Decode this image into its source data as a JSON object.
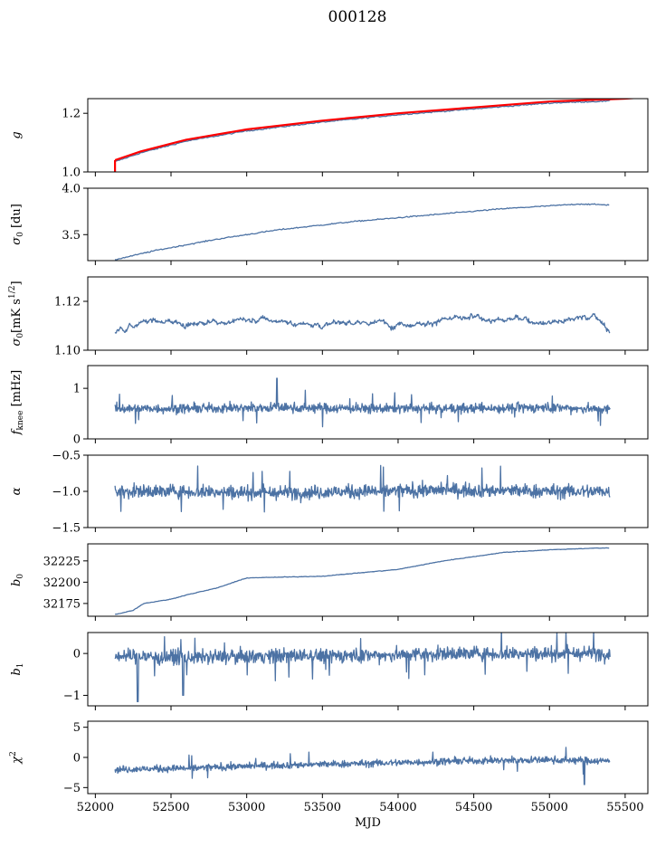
{
  "figure": {
    "title": "000128"
  },
  "colors": {
    "series": "#4c72a4",
    "fit": "#ff0000"
  },
  "chart_data": [
    {
      "type": "line",
      "id": "g",
      "ylabel": "g",
      "ylim": [
        1.0,
        1.25
      ],
      "yticks": [
        1.0,
        1.2
      ],
      "tick_labels": [
        "1.0",
        "1.2"
      ],
      "xlim": [
        51950,
        55650
      ],
      "series": [
        {
          "style": "blue",
          "x": [
            52130,
            52300,
            52600,
            53000,
            53500,
            54000,
            54500,
            55000,
            55400
          ],
          "values": [
            1.035,
            1.065,
            1.105,
            1.14,
            1.17,
            1.195,
            1.215,
            1.235,
            1.242
          ]
        },
        {
          "style": "red",
          "x": [
            52130,
            52300,
            52600,
            53000,
            53500,
            54000,
            54500,
            55000,
            55500,
            55650
          ],
          "values": [
            1.04,
            1.07,
            1.11,
            1.145,
            1.175,
            1.2,
            1.22,
            1.24,
            1.25,
            1.255
          ]
        }
      ]
    },
    {
      "type": "line",
      "id": "sigma0_du",
      "ylabel": "σ0 [du]",
      "ylim": [
        3.22,
        4.0
      ],
      "yticks": [
        3.5,
        4.0
      ],
      "tick_labels": [
        "3.5",
        "4.0"
      ],
      "xlim": [
        51950,
        55650
      ],
      "series": [
        {
          "style": "blue",
          "x": [
            52130,
            52400,
            52800,
            53200,
            53700,
            54200,
            54700,
            55200,
            55400
          ],
          "values": [
            3.23,
            3.33,
            3.45,
            3.55,
            3.64,
            3.71,
            3.78,
            3.83,
            3.82
          ]
        }
      ]
    },
    {
      "type": "line",
      "id": "sigma0_mk",
      "ylabel": "σ0[mK s^1/2]",
      "ylim": [
        1.1,
        1.13
      ],
      "yticks": [
        1.1,
        1.12
      ],
      "tick_labels": [
        "1.10",
        "1.12"
      ],
      "xlim": [
        51950,
        55650
      ],
      "series": [
        {
          "style": "blue",
          "x": [
            52130,
            52300,
            52600,
            53000,
            53500,
            54000,
            54500,
            55000,
            55300,
            55400
          ],
          "values": [
            1.107,
            1.112,
            1.111,
            1.112,
            1.111,
            1.111,
            1.113,
            1.112,
            1.114,
            1.108
          ]
        }
      ]
    },
    {
      "type": "line",
      "id": "fknee",
      "ylabel": "fknee [mHz]",
      "ylim": [
        0,
        1.45
      ],
      "yticks": [
        0,
        1
      ],
      "tick_labels": [
        "0",
        "1"
      ],
      "xlim": [
        51950,
        55650
      ],
      "series": [
        {
          "style": "blue",
          "x": [
            52130,
            52600,
            53200,
            53800,
            54400,
            55000,
            55400
          ],
          "values": [
            0.6,
            0.6,
            0.62,
            0.6,
            0.6,
            0.62,
            0.58
          ]
        }
      ]
    },
    {
      "type": "line",
      "id": "alpha",
      "ylabel": "α",
      "ylim": [
        -1.5,
        -0.5
      ],
      "yticks": [
        -1.5,
        -1.0,
        -0.5
      ],
      "tick_labels": [
        "−1.5",
        "−1.0",
        "−0.5"
      ],
      "xlim": [
        51950,
        55650
      ],
      "series": [
        {
          "style": "blue",
          "x": [
            52130,
            52600,
            53200,
            53800,
            54400,
            55000,
            55400
          ],
          "values": [
            -1.0,
            -1.0,
            -1.02,
            -1.0,
            -0.98,
            -1.0,
            -1.0
          ]
        }
      ]
    },
    {
      "type": "line",
      "id": "b0",
      "ylabel": "b0",
      "ylim": [
        32160,
        32245
      ],
      "yticks": [
        32175,
        32200,
        32225
      ],
      "tick_labels": [
        "32175",
        "32200",
        "32225"
      ],
      "xlim": [
        51950,
        55650
      ],
      "series": [
        {
          "style": "blue",
          "x": [
            52130,
            52250,
            52320,
            52500,
            52600,
            52800,
            53000,
            53500,
            54000,
            54300,
            54700,
            55000,
            55300,
            55400
          ],
          "values": [
            32162,
            32167,
            32175,
            32180,
            32185,
            32193,
            32205,
            32207,
            32215,
            32225,
            32235,
            32238,
            32240,
            32240
          ]
        }
      ]
    },
    {
      "type": "line",
      "id": "b1",
      "ylabel": "b1",
      "ylim": [
        -1.25,
        0.5
      ],
      "yticks": [
        -1,
        0
      ],
      "tick_labels": [
        "−1",
        "0"
      ],
      "xlim": [
        51950,
        55650
      ],
      "series": [
        {
          "style": "blue",
          "x": [
            52130,
            52600,
            53200,
            53800,
            54400,
            55000,
            55400
          ],
          "values": [
            -0.05,
            -0.1,
            -0.05,
            -0.05,
            0.0,
            0.0,
            0.0
          ]
        }
      ]
    },
    {
      "type": "line",
      "id": "chi2",
      "ylabel": "χ2",
      "ylim": [
        -6,
        6
      ],
      "yticks": [
        -5,
        0,
        5
      ],
      "tick_labels": [
        "−5",
        "0",
        "5"
      ],
      "xlim": [
        51950,
        55650
      ],
      "xlabel": "MJD",
      "xticks": [
        52000,
        52500,
        53000,
        53500,
        54000,
        54500,
        55000,
        55500
      ],
      "xtick_labels": [
        "52000",
        "52500",
        "53000",
        "53500",
        "54000",
        "54500",
        "55000",
        "55500"
      ],
      "series": [
        {
          "style": "blue",
          "x": [
            52130,
            52600,
            53200,
            53800,
            54400,
            55000,
            55400
          ],
          "values": [
            -2.0,
            -1.8,
            -1.3,
            -1.0,
            -0.6,
            -0.4,
            -0.6
          ]
        }
      ]
    }
  ]
}
